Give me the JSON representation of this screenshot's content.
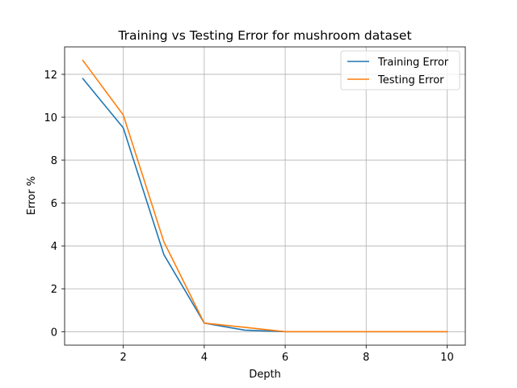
{
  "chart_data": {
    "type": "line",
    "title": "Training vs Testing Error for mushroom dataset",
    "xlabel": "Depth",
    "ylabel": "Error %",
    "x": [
      1,
      2,
      3,
      4,
      5,
      6,
      7,
      8,
      9,
      10
    ],
    "series": [
      {
        "name": "Training Error",
        "color": "#1f77b4",
        "values": [
          11.8,
          9.5,
          3.6,
          0.4,
          0.07,
          0.0,
          0.0,
          0.0,
          0.0,
          0.0
        ]
      },
      {
        "name": "Testing Error",
        "color": "#ff7f0e",
        "values": [
          12.65,
          10.1,
          4.2,
          0.4,
          0.2,
          0.0,
          0.0,
          0.0,
          0.0,
          0.0
        ]
      }
    ],
    "xlim": [
      0.55,
      10.45
    ],
    "ylim": [
      -0.63,
      13.28
    ],
    "xticks": [
      "2",
      "4",
      "6",
      "8",
      "10"
    ],
    "xtick_values": [
      2,
      4,
      6,
      8,
      10
    ],
    "yticks": [
      "0",
      "2",
      "4",
      "6",
      "8",
      "10",
      "12"
    ],
    "ytick_values": [
      0,
      2,
      4,
      6,
      8,
      10,
      12
    ],
    "grid": true,
    "legend_position": "upper right"
  }
}
